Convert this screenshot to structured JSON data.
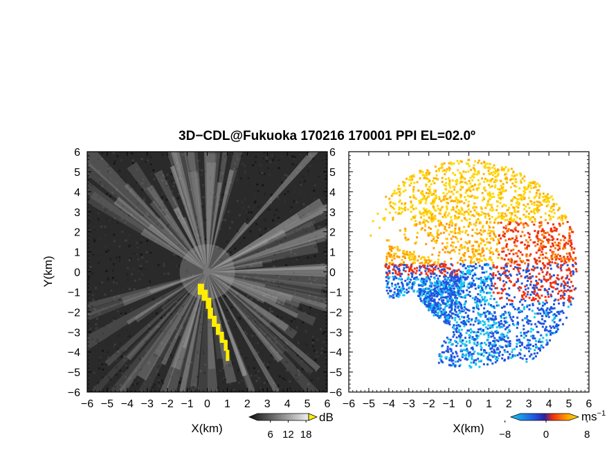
{
  "title": "3D−CDL@Fukuoka 170216 170001 PPI EL=02.0º",
  "colors": {
    "background_left": "#2a2a2a",
    "echo_yellow": "#ffee00",
    "vel_blue": "#1f55e0",
    "vel_cyan": "#18c8f0",
    "vel_red": "#f03010",
    "vel_orange": "#ff9a00",
    "vel_yellow": "#ffd800"
  },
  "chart_data": [
    {
      "type": "heatmap",
      "panel": "left",
      "product": "SNR",
      "xlabel": "X(km)",
      "ylabel": "Y(km)",
      "xlim": [
        -6,
        6
      ],
      "ylim": [
        -6,
        6
      ],
      "xticks": [
        "−6",
        "−5",
        "−4",
        "−3",
        "−2",
        "−1",
        "0",
        "1",
        "2",
        "3",
        "4",
        "5",
        "6"
      ],
      "yticks": [
        "6",
        "5",
        "4",
        "3",
        "2",
        "1",
        "0",
        "−1",
        "−2",
        "−3",
        "−4",
        "−5",
        "−6"
      ],
      "colorbar": {
        "unit": "dB",
        "ticks": [
          "6",
          "12",
          "18"
        ],
        "range": [
          0,
          21
        ]
      }
    },
    {
      "type": "heatmap",
      "panel": "right",
      "product": "Doppler velocity",
      "xlabel": "X(km)",
      "ylabel": "",
      "xlim": [
        -6,
        6
      ],
      "ylim": [
        -6,
        6
      ],
      "xticks": [
        "−6",
        "−5",
        "−4",
        "−3",
        "−2",
        "−1",
        "0",
        "1",
        "2",
        "3",
        "4",
        "5",
        "6"
      ],
      "yticks": [
        "6",
        "5",
        "4",
        "3",
        "2",
        "1",
        "0",
        "−1",
        "−2",
        "−3",
        "−4",
        "−5",
        "−6"
      ],
      "colorbar": {
        "unit": "ms",
        "unit_exp": "−1",
        "ticks": [
          "−8",
          "0",
          "8"
        ],
        "range": [
          -12,
          12
        ]
      }
    }
  ]
}
